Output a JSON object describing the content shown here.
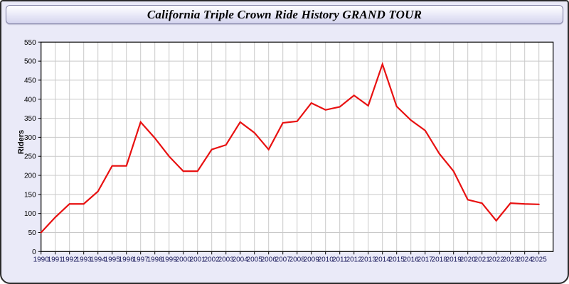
{
  "window": {
    "title": "California Triple Crown Ride History GRAND TOUR"
  },
  "chart_data": {
    "type": "line",
    "title": "California Triple Crown Ride History GRAND TOUR",
    "xlabel": "",
    "ylabel": "Riders",
    "x": [
      1990,
      1991,
      1992,
      1993,
      1994,
      1995,
      1996,
      1997,
      1998,
      1999,
      2000,
      2001,
      2002,
      2003,
      2004,
      2005,
      2006,
      2007,
      2008,
      2009,
      2010,
      2011,
      2012,
      2013,
      2014,
      2015,
      2016,
      2017,
      2018,
      2019,
      2020,
      2021,
      2022,
      2023,
      2024,
      2025
    ],
    "values": [
      50,
      90,
      125,
      125,
      158,
      225,
      225,
      340,
      298,
      250,
      211,
      211,
      268,
      280,
      340,
      312,
      268,
      338,
      342,
      390,
      372,
      380,
      410,
      383,
      492,
      381,
      345,
      318,
      257,
      211,
      136,
      127,
      81,
      127,
      125,
      124
    ],
    "ylim": [
      0,
      550
    ],
    "ytick_step": 50,
    "grid": true,
    "legend": "none",
    "line_color": "#e81111",
    "plot_bg": "#ffffff",
    "grid_color": "#c9c9c9",
    "x_label_color": "#1b1b5c",
    "y_label_color": "#000000"
  }
}
